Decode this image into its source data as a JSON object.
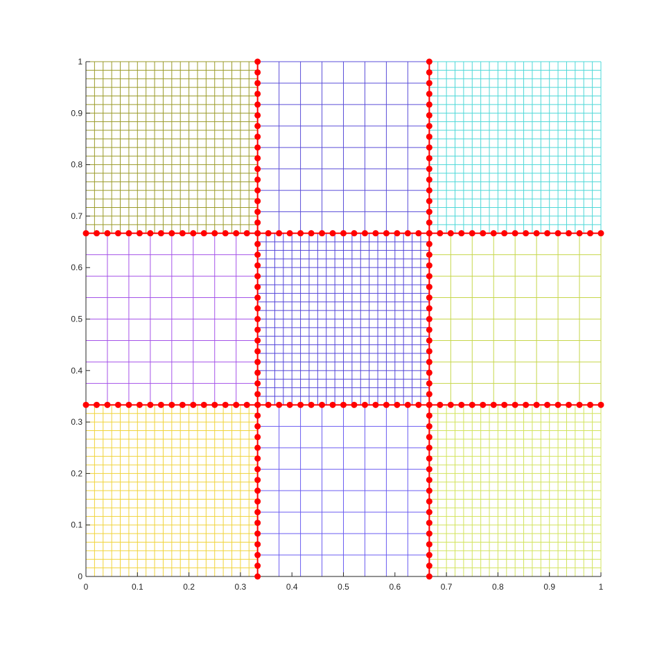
{
  "chart_data": {
    "type": "scatter",
    "title": "",
    "xlabel": "",
    "ylabel": "",
    "xlim": [
      0,
      1
    ],
    "ylim": [
      0,
      1
    ],
    "grid": false,
    "x_ticks": [
      "0",
      "0.1",
      "0.2",
      "0.3",
      "0.4",
      "0.5",
      "0.6",
      "0.7",
      "0.8",
      "0.9",
      "1"
    ],
    "y_ticks": [
      "0",
      "0.1",
      "0.2",
      "0.3",
      "0.4",
      "0.5",
      "0.6",
      "0.7",
      "0.8",
      "0.9",
      "1"
    ],
    "mesh_blocks": [
      {
        "x_range": [
          0,
          0.3333
        ],
        "y_range": [
          0,
          0.3333
        ],
        "divisions": 20,
        "color": "#f0d33a"
      },
      {
        "x_range": [
          0.3333,
          0.6667
        ],
        "y_range": [
          0,
          0.3333
        ],
        "divisions": 8,
        "color": "#6a5cf0"
      },
      {
        "x_range": [
          0.6667,
          1
        ],
        "y_range": [
          0,
          0.3333
        ],
        "divisions": 20,
        "color": "#d2e35c"
      },
      {
        "x_range": [
          0,
          0.3333
        ],
        "y_range": [
          0.3333,
          0.6667
        ],
        "divisions": 8,
        "color": "#a452e8"
      },
      {
        "x_range": [
          0.3333,
          0.6667
        ],
        "y_range": [
          0.3333,
          0.6667
        ],
        "divisions": 20,
        "color": "#5244d8"
      },
      {
        "x_range": [
          0.6667,
          1
        ],
        "y_range": [
          0.3333,
          0.6667
        ],
        "divisions": 8,
        "color": "#c6d64a"
      },
      {
        "x_range": [
          0,
          0.3333
        ],
        "y_range": [
          0.6667,
          1
        ],
        "divisions": 20,
        "color": "#9a9a28"
      },
      {
        "x_range": [
          0.3333,
          0.6667
        ],
        "y_range": [
          0.6667,
          1
        ],
        "divisions": 8,
        "color": "#5a4ed8"
      },
      {
        "x_range": [
          0.6667,
          1
        ],
        "y_range": [
          0.6667,
          1
        ],
        "divisions": 20,
        "color": "#4ed8d8"
      }
    ],
    "interface_lines": [
      {
        "orientation": "vertical",
        "position": 0.3333,
        "range": [
          0,
          1
        ],
        "points": 49
      },
      {
        "orientation": "vertical",
        "position": 0.6667,
        "range": [
          0,
          1
        ],
        "points": 49
      },
      {
        "orientation": "horizontal",
        "position": 0.3333,
        "range": [
          0,
          1
        ],
        "points": 49
      },
      {
        "orientation": "horizontal",
        "position": 0.6667,
        "range": [
          0,
          1
        ],
        "points": 49
      }
    ],
    "marker_color": "#ff0000"
  }
}
